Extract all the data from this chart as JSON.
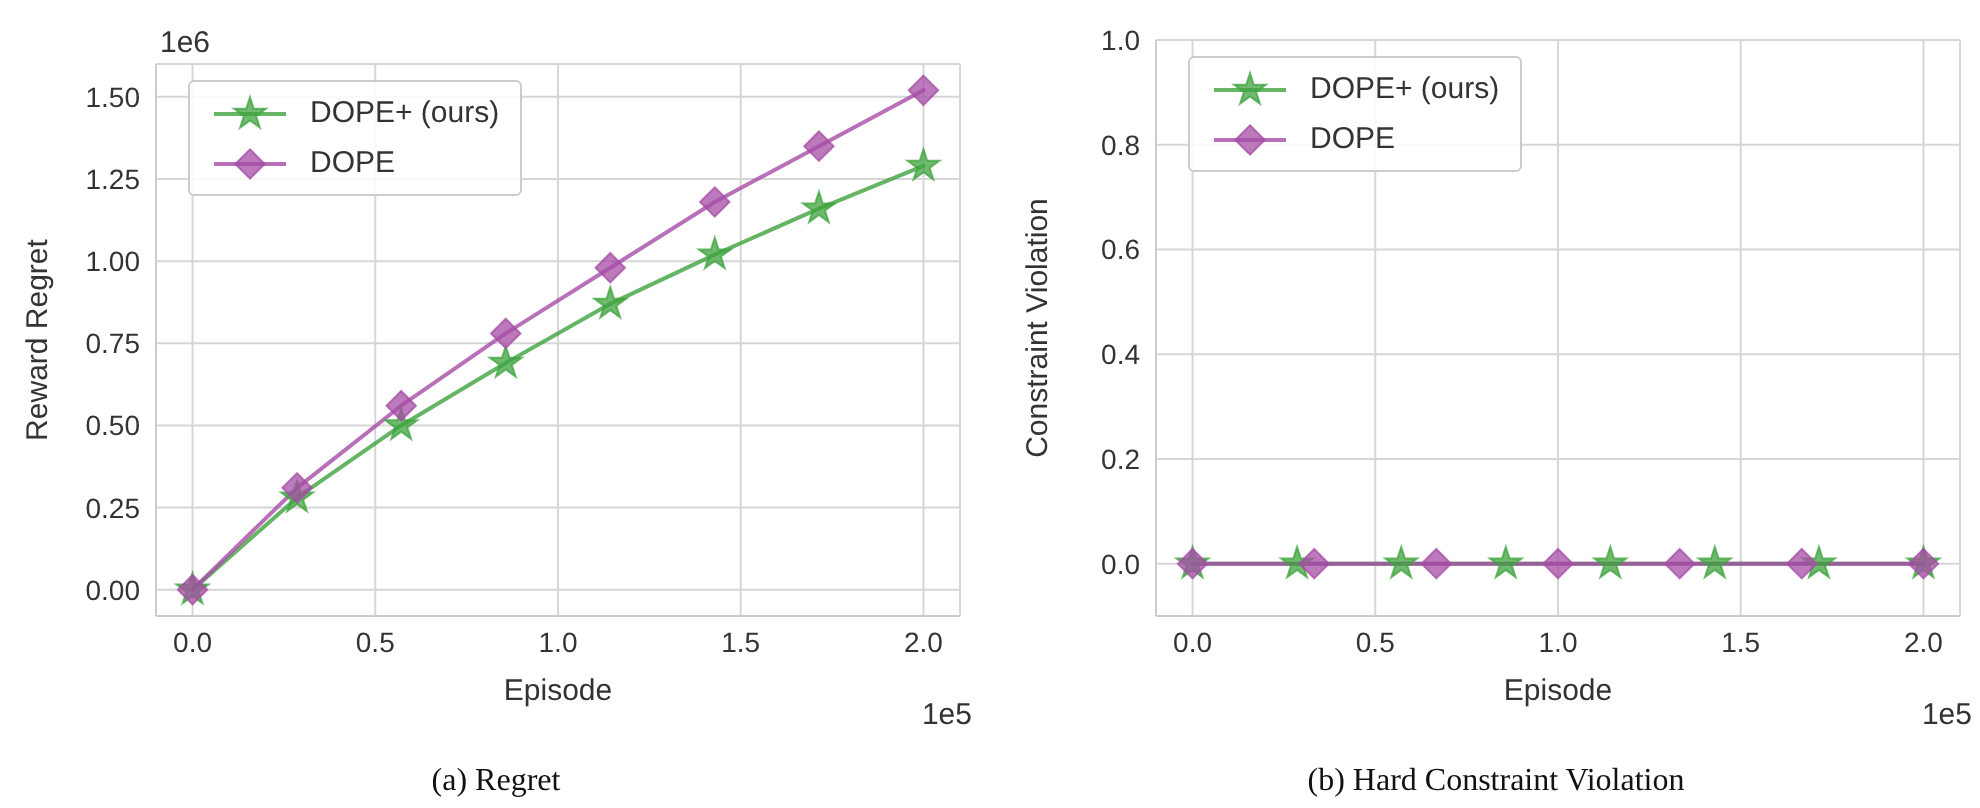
{
  "chart_data": [
    {
      "type": "line",
      "xlabel": "Episode",
      "ylabel": "Reward Regret",
      "xlim": [
        -0.1,
        2.1
      ],
      "xticks": [
        {
          "value": 0,
          "label": "0.0"
        },
        {
          "value": 0.5,
          "label": "0.5"
        },
        {
          "value": 1,
          "label": "1.0"
        },
        {
          "value": 1.5,
          "label": "1.5"
        },
        {
          "value": 2,
          "label": "2.0"
        }
      ],
      "ylim": [
        -0.08,
        1.6
      ],
      "yticks": [
        {
          "value": 0,
          "label": "0.00"
        },
        {
          "value": 0.25,
          "label": "0.25"
        },
        {
          "value": 0.5,
          "label": "0.50"
        },
        {
          "value": 0.75,
          "label": "0.75"
        },
        {
          "value": 1,
          "label": "1.00"
        },
        {
          "value": 1.25,
          "label": "1.25"
        },
        {
          "value": 1.5,
          "label": "1.50"
        }
      ],
      "grid": true,
      "legend": "top left",
      "annotations": [
        "1e6",
        "1e5",
        "(a) Regret"
      ],
      "series": [
        {
          "name": "DOPE+ (ours)",
          "color": "#3fa33f",
          "marker": "star",
          "x": [
            0,
            0.286,
            0.571,
            0.857,
            1.143,
            1.429,
            1.714,
            2.0
          ],
          "values": [
            0,
            0.28,
            0.5,
            0.69,
            0.87,
            1.02,
            1.16,
            1.29
          ]
        },
        {
          "name": "DOPE",
          "color": "#a64ca6",
          "marker": "diamond",
          "x": [
            0,
            0.286,
            0.571,
            0.857,
            1.143,
            1.429,
            1.714,
            2.0
          ],
          "values": [
            0,
            0.31,
            0.56,
            0.78,
            0.98,
            1.18,
            1.35,
            1.52
          ]
        }
      ]
    },
    {
      "type": "line",
      "xlabel": "Episode",
      "ylabel": "Constraint Violation",
      "xlim": [
        -0.1,
        2.1
      ],
      "xticks": [
        {
          "value": 0,
          "label": "0.0"
        },
        {
          "value": 0.5,
          "label": "0.5"
        },
        {
          "value": 1,
          "label": "1.0"
        },
        {
          "value": 1.5,
          "label": "1.5"
        },
        {
          "value": 2,
          "label": "2.0"
        }
      ],
      "ylim": [
        -0.1,
        1.0
      ],
      "yticks": [
        {
          "value": 0,
          "label": "0.0"
        },
        {
          "value": 0.2,
          "label": "0.2"
        },
        {
          "value": 0.4,
          "label": "0.4"
        },
        {
          "value": 0.6,
          "label": "0.6"
        },
        {
          "value": 0.8,
          "label": "0.8"
        },
        {
          "value": 1,
          "label": "1.0"
        }
      ],
      "grid": true,
      "legend": "top left",
      "annotations": [
        null,
        "1e5",
        "(b) Hard Constraint Violation"
      ],
      "series": [
        {
          "name": "DOPE+ (ours)",
          "color": "#3fa33f",
          "marker": "star",
          "x": [
            0,
            0.286,
            0.571,
            0.857,
            1.143,
            1.429,
            1.714,
            2.0
          ],
          "values": [
            0,
            0,
            0,
            0,
            0,
            0,
            0,
            0
          ]
        },
        {
          "name": "DOPE",
          "color": "#a64ca6",
          "marker": "diamond",
          "x": [
            0,
            0.333,
            0.667,
            1.0,
            1.333,
            1.667,
            2.0
          ],
          "values": [
            0,
            0,
            0,
            0,
            0,
            0,
            0
          ]
        }
      ]
    }
  ]
}
